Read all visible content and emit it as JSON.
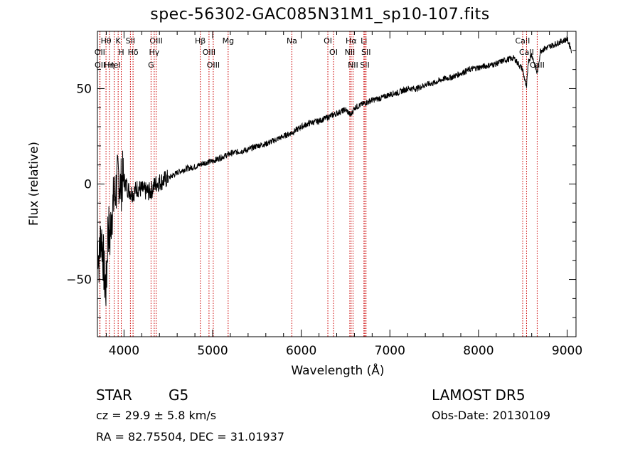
{
  "chart_data": {
    "type": "line",
    "title": "spec-56302-GAC085N31M1_sp10-107.fits",
    "xlabel": "Wavelength (Å)",
    "ylabel": "Flux (relative)",
    "xlim": [
      3700,
      9100
    ],
    "ylim": [
      -80,
      80
    ],
    "xticks": [
      4000,
      5000,
      6000,
      7000,
      8000,
      9000
    ],
    "yticks": [
      -50,
      0,
      50
    ],
    "grid": false,
    "series": [
      {
        "x": [
          3700,
          3720,
          3740,
          3760,
          3780,
          3800,
          3820,
          3840,
          3860,
          3880,
          3900,
          3920,
          3940,
          3960,
          3980,
          4000,
          4050,
          4100,
          4150,
          4200,
          4250,
          4300,
          4350,
          4400,
          4500,
          4600,
          4700,
          4800,
          4900,
          5000,
          5100,
          5200,
          5300,
          5400,
          5500,
          5600,
          5700,
          5800,
          5900,
          6000,
          6100,
          6200,
          6300,
          6400,
          6500,
          6560,
          6600,
          6700,
          6800,
          6900,
          7000,
          7100,
          7200,
          7300,
          7400,
          7500,
          7600,
          7700,
          7800,
          7900,
          8000,
          8100,
          8200,
          8300,
          8400,
          8498,
          8542,
          8560,
          8600,
          8662,
          8700,
          8800,
          8900,
          9000,
          9050
        ],
        "y": [
          -30,
          -40,
          -25,
          -35,
          -50,
          -55,
          -20,
          -30,
          -15,
          -10,
          -5,
          0,
          5,
          -2,
          3,
          2,
          -3,
          -5,
          -2,
          -3,
          -4,
          -4,
          0,
          1,
          3,
          6,
          8,
          9,
          11,
          12,
          14,
          16,
          17,
          18,
          20,
          21,
          23,
          25,
          27,
          30,
          32,
          33,
          35,
          37,
          39,
          36,
          40,
          42,
          44,
          45,
          47,
          48,
          50,
          50,
          52,
          53,
          55,
          56,
          58,
          60,
          61,
          62,
          63,
          65,
          66,
          60,
          50,
          64,
          68,
          58,
          70,
          72,
          74,
          76,
          70
        ]
      }
    ],
    "lines": [
      {
        "label": "Hθ",
        "x": 3797
      },
      {
        "label": "OII",
        "x": 3727
      },
      {
        "label": "OII",
        "x": 3729
      },
      {
        "label": "Hη",
        "x": 3835
      },
      {
        "label": "K",
        "x": 3934
      },
      {
        "label": "HeI",
        "x": 3889
      },
      {
        "label": "H",
        "x": 3969
      },
      {
        "label": "SII",
        "x": 4072
      },
      {
        "label": "Hδ",
        "x": 4102
      },
      {
        "label": "OIII",
        "x": 4363
      },
      {
        "label": "Hγ",
        "x": 4341
      },
      {
        "label": "G",
        "x": 4305
      },
      {
        "label": "Hβ",
        "x": 4861
      },
      {
        "label": "OIII",
        "x": 4959
      },
      {
        "label": "OIII",
        "x": 5007
      },
      {
        "label": "Mg",
        "x": 5175
      },
      {
        "label": "Na",
        "x": 5894
      },
      {
        "label": "OI",
        "x": 6300
      },
      {
        "label": "OI",
        "x": 6364
      },
      {
        "label": "Hα",
        "x": 6563
      },
      {
        "label": "NII",
        "x": 6548
      },
      {
        "label": "NII",
        "x": 6584
      },
      {
        "label": "SII",
        "x": 6717
      },
      {
        "label": "Li",
        "x": 6707
      },
      {
        "label": "SII",
        "x": 6731
      },
      {
        "label": "CaII",
        "x": 8498
      },
      {
        "label": "CaII",
        "x": 8542
      },
      {
        "label": "CaII",
        "x": 8662
      }
    ]
  },
  "info": {
    "class": "STAR",
    "subclass": "G5",
    "survey": "LAMOST DR5",
    "redshift": "cz = 29.9 ± 5.8 km/s",
    "obs_date": "Obs-Date: 20130109",
    "coords": "RA =  82.75504, DEC =  31.01937"
  },
  "colors": {
    "axis": "#000000",
    "spectrum": "#000000",
    "line_marker": "#cc0000"
  }
}
